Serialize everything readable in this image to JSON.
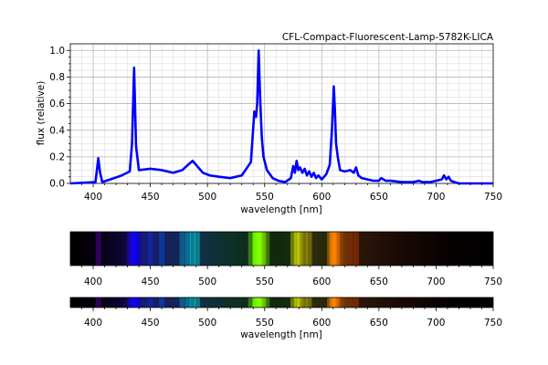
{
  "chart_data": {
    "type": "line",
    "title": "CFL-Compact-Fluorescent-Lamp-5782K-LICA",
    "xlabel": "wavelength [nm]",
    "ylabel": "flux (relative)",
    "xlim": [
      380,
      750
    ],
    "ylim": [
      0,
      1.05
    ],
    "x_ticks": [
      "400",
      "450",
      "500",
      "550",
      "600",
      "650",
      "700",
      "750"
    ],
    "y_ticks": [
      "0.0",
      "0.2",
      "0.4",
      "0.6",
      "0.8",
      "1.0"
    ],
    "grid": true,
    "line_color": "#0000ff",
    "series": [
      {
        "x": [
          380,
          402,
          404.5,
          406,
          408,
          415,
          425,
          432,
          434,
          435.8,
          437.5,
          440,
          450,
          460,
          470,
          478,
          483,
          487,
          491,
          496,
          502,
          510,
          520,
          530,
          538,
          541,
          542.5,
          543.5,
          544.8,
          546,
          547.5,
          549,
          552,
          557,
          562,
          568,
          573,
          575,
          576.5,
          578,
          579.5,
          581,
          583,
          585,
          587,
          589,
          591,
          593,
          595,
          597,
          600,
          604,
          607,
          609,
          610.5,
          611.5,
          612.5,
          614,
          616,
          620,
          625,
          628,
          630,
          632,
          635,
          640,
          645,
          650,
          652,
          656,
          660,
          670,
          680,
          685,
          688,
          690,
          695,
          700,
          705,
          707,
          709,
          711,
          713,
          716,
          720,
          730,
          740,
          750
        ],
        "y": [
          0.0,
          0.01,
          0.19,
          0.08,
          0.01,
          0.03,
          0.06,
          0.09,
          0.3,
          0.87,
          0.28,
          0.1,
          0.11,
          0.1,
          0.08,
          0.1,
          0.14,
          0.17,
          0.13,
          0.08,
          0.06,
          0.05,
          0.04,
          0.06,
          0.16,
          0.54,
          0.5,
          0.6,
          1.0,
          0.66,
          0.35,
          0.2,
          0.1,
          0.04,
          0.02,
          0.01,
          0.04,
          0.13,
          0.08,
          0.17,
          0.1,
          0.12,
          0.08,
          0.11,
          0.06,
          0.09,
          0.05,
          0.08,
          0.04,
          0.06,
          0.03,
          0.07,
          0.14,
          0.42,
          0.73,
          0.55,
          0.3,
          0.2,
          0.1,
          0.09,
          0.1,
          0.08,
          0.12,
          0.06,
          0.04,
          0.03,
          0.02,
          0.02,
          0.04,
          0.02,
          0.02,
          0.01,
          0.01,
          0.02,
          0.01,
          0.01,
          0.01,
          0.02,
          0.03,
          0.06,
          0.03,
          0.05,
          0.02,
          0.01,
          0.0,
          0.0,
          0.0,
          0.0
        ]
      }
    ],
    "spectrum_x_ticks": [
      "400",
      "450",
      "500",
      "550",
      "600",
      "650",
      "700",
      "750"
    ],
    "spectrum_xlabel": "wavelength [nm]"
  }
}
